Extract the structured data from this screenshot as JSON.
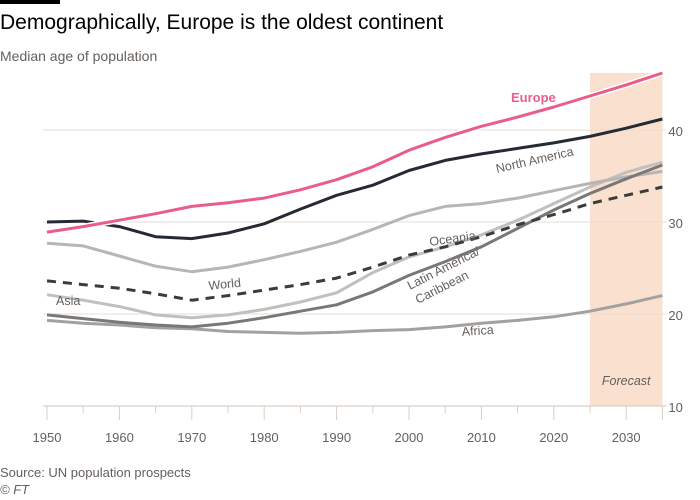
{
  "header": {
    "title": "Demographically, Europe is the oldest continent",
    "subtitle": "Median age of population"
  },
  "footer": {
    "source": "Source: UN population prospects",
    "credit": "© FT"
  },
  "chart_data": {
    "type": "line",
    "title": "Demographically, Europe is the oldest continent",
    "subtitle": "Median age of population",
    "xlabel": "",
    "ylabel": "Median age of population",
    "xlim": [
      1950,
      2035
    ],
    "ylim": [
      10,
      46
    ],
    "x_ticks": [
      1950,
      1960,
      1970,
      1980,
      1990,
      2000,
      2010,
      2020,
      2030
    ],
    "x_tick_labels": [
      "1950",
      "1960",
      "1970",
      "1980",
      "1990",
      "2000",
      "2010",
      "2020",
      "2030"
    ],
    "y_ticks": [
      10,
      20,
      30,
      40
    ],
    "y_tick_labels": [
      "10",
      "20",
      "30",
      "40"
    ],
    "y_axis_side": "right",
    "grid": true,
    "forecast": {
      "label": "Forecast",
      "start": 2025,
      "end": 2035,
      "color": "#fae0cf"
    },
    "x": [
      1950,
      1955,
      1960,
      1965,
      1970,
      1975,
      1980,
      1985,
      1990,
      1995,
      2000,
      2005,
      2010,
      2015,
      2020,
      2025,
      2030,
      2035
    ],
    "series": [
      {
        "name": "Europe",
        "label": "Europe",
        "color": "#e95d8c",
        "dash": false,
        "width": 3,
        "values": [
          28.9,
          29.5,
          30.2,
          30.9,
          31.7,
          32.1,
          32.6,
          33.5,
          34.6,
          36.0,
          37.8,
          39.2,
          40.4,
          41.4,
          42.5,
          43.7,
          44.9,
          46.2
        ]
      },
      {
        "name": "North America",
        "label": "North America",
        "color": "#262a33",
        "dash": false,
        "width": 3,
        "values": [
          30.0,
          30.1,
          29.5,
          28.4,
          28.2,
          28.8,
          29.8,
          31.4,
          32.9,
          34.0,
          35.6,
          36.7,
          37.4,
          38.0,
          38.6,
          39.3,
          40.2,
          41.2
        ]
      },
      {
        "name": "Oceania",
        "label": "Oceania",
        "color": "#b8b6b4",
        "dash": false,
        "width": 3,
        "values": [
          27.7,
          27.4,
          26.3,
          25.2,
          24.6,
          25.1,
          25.9,
          26.8,
          27.8,
          29.2,
          30.7,
          31.7,
          32.0,
          32.6,
          33.4,
          34.2,
          34.9,
          35.5
        ]
      },
      {
        "name": "World",
        "label": "World",
        "color": "#3d3b39",
        "dash": true,
        "width": 3,
        "values": [
          23.6,
          23.2,
          22.8,
          22.2,
          21.5,
          22.0,
          22.6,
          23.2,
          23.9,
          25.1,
          26.4,
          27.3,
          28.4,
          29.7,
          30.8,
          32.0,
          32.9,
          33.8
        ]
      },
      {
        "name": "Asia",
        "label": "Asia",
        "color": "#c2c0be",
        "dash": false,
        "width": 3,
        "values": [
          22.1,
          21.5,
          20.8,
          19.9,
          19.6,
          19.9,
          20.5,
          21.3,
          22.3,
          24.5,
          26.2,
          27.3,
          28.6,
          30.2,
          32.0,
          33.8,
          35.4,
          36.5
        ]
      },
      {
        "name": "Latin America/ Caribbean",
        "label": "Latin America/",
        "label2": "Caribbean",
        "color": "#7a7876",
        "dash": false,
        "width": 3,
        "values": [
          19.9,
          19.5,
          19.1,
          18.8,
          18.6,
          19.0,
          19.6,
          20.3,
          21.0,
          22.4,
          24.2,
          25.7,
          27.3,
          29.3,
          31.3,
          33.1,
          34.7,
          36.2
        ]
      },
      {
        "name": "Africa",
        "label": "Africa",
        "color": "#a3a19f",
        "dash": false,
        "width": 3,
        "values": [
          19.3,
          19.0,
          18.8,
          18.5,
          18.4,
          18.1,
          18.0,
          17.9,
          18.0,
          18.2,
          18.3,
          18.6,
          19.0,
          19.3,
          19.7,
          20.3,
          21.1,
          22.0
        ]
      }
    ]
  }
}
